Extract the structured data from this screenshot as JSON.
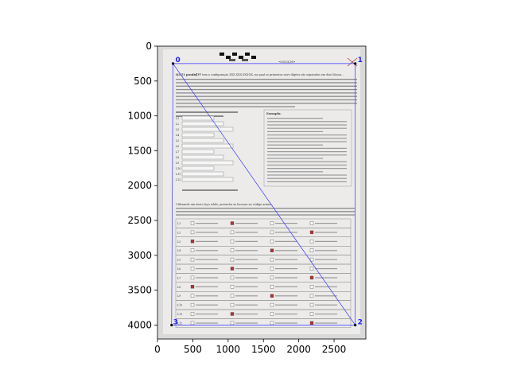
{
  "chart_data": {
    "type": "image_with_polygon_overlay",
    "title": "",
    "xlabel": "",
    "ylabel": "",
    "image_extent": {
      "width": 2950,
      "height": 4200
    },
    "xlim": [
      0,
      2950
    ],
    "ylim": [
      4200,
      0
    ],
    "x_ticks": [
      0,
      500,
      1000,
      1500,
      2000,
      2500
    ],
    "y_ticks": [
      0,
      500,
      1000,
      1500,
      2000,
      2500,
      3000,
      3500,
      4000
    ],
    "polygon": {
      "color": "#3333ff",
      "points": [
        {
          "label": "0",
          "x": 220,
          "y": 250
        },
        {
          "label": "1",
          "x": 2800,
          "y": 250
        },
        {
          "label": "2",
          "x": 2800,
          "y": 4000
        },
        {
          "label": "3",
          "x": 200,
          "y": 4000
        }
      ],
      "diagonal": [
        0,
        2
      ]
    },
    "document": {
      "header_code": "•035/3/50•",
      "question_title": "Q3 [1 ponto]",
      "intro_text": "O CPF tem a configuração XXX.XXX.XXX-XX, na qual os primeiros nove dígitos são separados em dois blocos...",
      "exemplo_label": "Exemplo:",
      "bottom_text": "Utilizando um único laço while, preencha as lacunas no código acima...",
      "line_labels": [
        "L1",
        "L2",
        "L3",
        "L4",
        "L5",
        "L6",
        "L7",
        "L8",
        "L9",
        "L10",
        "L11",
        "L12"
      ]
    }
  }
}
